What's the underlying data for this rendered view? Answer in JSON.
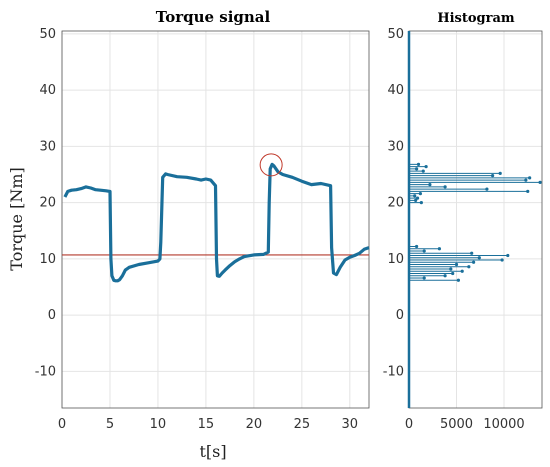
{
  "colors": {
    "signal": "#1a6f9a",
    "threshold": "#b33a2e",
    "marker": "#c0392b"
  },
  "chart_data": [
    {
      "type": "line",
      "title": "Torque signal",
      "xlabel": "t[s]",
      "ylabel": "Torque [Nm]",
      "xlim": [
        0,
        32
      ],
      "ylim": [
        -16.5,
        50.5
      ],
      "xticks": [
        0,
        5,
        10,
        15,
        20,
        25,
        30
      ],
      "yticks": [
        -10,
        0,
        10,
        20,
        30,
        40,
        50
      ],
      "grid": true,
      "series": [
        {
          "x": [
            0.3,
            0.6,
            1.0,
            1.5,
            2.0,
            2.5,
            3.0,
            3.5,
            4.0,
            4.6,
            5.0,
            5.1,
            5.2,
            5.4,
            5.6,
            5.8,
            6.0,
            6.3,
            6.6,
            7.0,
            8.0,
            9.0,
            10.0,
            10.2,
            10.3,
            10.5,
            10.8,
            11.0,
            12.0,
            13.0,
            14.0,
            14.5,
            15.0,
            15.5,
            16.0,
            16.1,
            16.2,
            16.4,
            16.7,
            17.0,
            17.5,
            18.0,
            18.5,
            19.0,
            20.0,
            21.0,
            21.5,
            21.6,
            21.7,
            21.9,
            22.1,
            22.5,
            23.0,
            24.0,
            25.0,
            26.0,
            27.0,
            28.0,
            28.1,
            28.3,
            28.6,
            29.0,
            29.5,
            30.0,
            30.5,
            31.0,
            31.5,
            32.0
          ],
          "y": [
            21.0,
            22.0,
            22.2,
            22.3,
            22.5,
            22.8,
            22.6,
            22.3,
            22.2,
            22.1,
            22.0,
            10.0,
            7.0,
            6.2,
            6.1,
            6.1,
            6.3,
            7.0,
            8.0,
            8.5,
            9.0,
            9.3,
            9.6,
            10.0,
            13.0,
            24.5,
            25.1,
            25.0,
            24.6,
            24.5,
            24.2,
            24.0,
            24.2,
            24.0,
            23.0,
            10.0,
            7.0,
            6.9,
            7.5,
            8.0,
            8.8,
            9.5,
            10.0,
            10.4,
            10.7,
            10.8,
            11.2,
            20.0,
            26.0,
            26.8,
            26.5,
            25.5,
            25.0,
            24.5,
            23.8,
            23.2,
            23.4,
            23.0,
            12.0,
            7.5,
            7.2,
            8.5,
            9.8,
            10.3,
            10.6,
            11.0,
            11.7,
            12.0
          ]
        }
      ],
      "threshold": 10.7,
      "annotation": {
        "type": "circle",
        "x": 21.8,
        "y": 26.7
      }
    },
    {
      "type": "bar",
      "orientation": "horizontal",
      "title": "Histogram",
      "xlim": [
        0,
        14000
      ],
      "ylim": [
        -16.5,
        50.5
      ],
      "xticks": [
        0,
        5000,
        10000
      ],
      "yticks": [
        -10,
        0,
        10,
        20,
        30,
        40,
        50
      ],
      "grid": true,
      "bins": [
        {
          "y": 6.2,
          "count": 5200
        },
        {
          "y": 6.6,
          "count": 1600
        },
        {
          "y": 7.0,
          "count": 3800
        },
        {
          "y": 7.4,
          "count": 4600
        },
        {
          "y": 7.8,
          "count": 5600
        },
        {
          "y": 8.2,
          "count": 4400
        },
        {
          "y": 8.6,
          "count": 6300
        },
        {
          "y": 9.0,
          "count": 5000
        },
        {
          "y": 9.4,
          "count": 6800
        },
        {
          "y": 9.8,
          "count": 9800
        },
        {
          "y": 10.2,
          "count": 7400
        },
        {
          "y": 10.6,
          "count": 10400
        },
        {
          "y": 11.0,
          "count": 6600
        },
        {
          "y": 11.4,
          "count": 1600
        },
        {
          "y": 11.8,
          "count": 3200
        },
        {
          "y": 12.2,
          "count": 800
        },
        {
          "y": 20.0,
          "count": 1300
        },
        {
          "y": 20.4,
          "count": 700
        },
        {
          "y": 20.8,
          "count": 900
        },
        {
          "y": 21.2,
          "count": 600
        },
        {
          "y": 21.6,
          "count": 1200
        },
        {
          "y": 22.0,
          "count": 12500
        },
        {
          "y": 22.4,
          "count": 8200
        },
        {
          "y": 22.8,
          "count": 3800
        },
        {
          "y": 23.2,
          "count": 2200
        },
        {
          "y": 23.6,
          "count": 13800
        },
        {
          "y": 24.0,
          "count": 12300
        },
        {
          "y": 24.4,
          "count": 12700
        },
        {
          "y": 24.8,
          "count": 8800
        },
        {
          "y": 25.2,
          "count": 9600
        },
        {
          "y": 25.6,
          "count": 1500
        },
        {
          "y": 26.0,
          "count": 800
        },
        {
          "y": 26.4,
          "count": 1800
        },
        {
          "y": 26.8,
          "count": 1000
        }
      ]
    }
  ]
}
